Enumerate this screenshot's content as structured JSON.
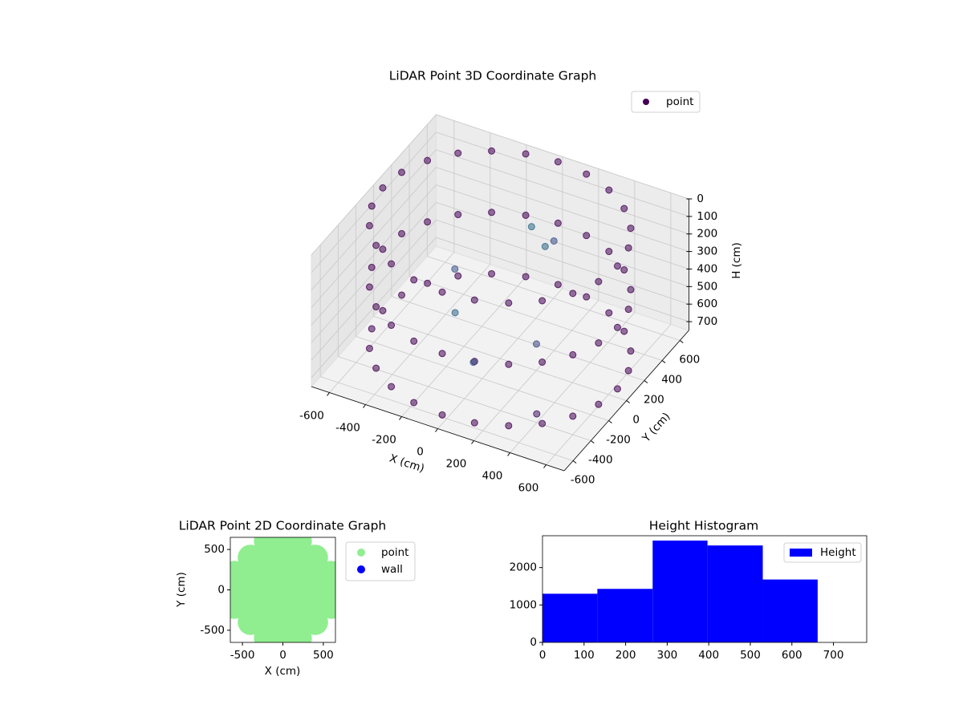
{
  "chart_data": [
    {
      "type": "scatter3d",
      "title": "LiDAR Point 3D Coordinate Graph",
      "xlabel": "X (cm)",
      "ylabel": "Y (cm)",
      "zlabel": "H (cm)",
      "xlim": [
        -700,
        700
      ],
      "ylim": [
        -700,
        700
      ],
      "zlim": [
        750,
        0
      ],
      "xticks": [
        -600,
        -400,
        -200,
        0,
        200,
        400,
        600
      ],
      "yticks": [
        -600,
        -400,
        -200,
        0,
        200,
        400,
        600
      ],
      "zticks": [
        0,
        100,
        200,
        300,
        400,
        500,
        600,
        700
      ],
      "grid": true,
      "cmap": "viridis",
      "legend": "upper right",
      "series": [
        {
          "name": "point",
          "color": "#440154",
          "x": [
            650,
            628,
            563,
            460,
            325,
            168,
            0,
            -168,
            -325,
            -460,
            -563,
            -628,
            -650,
            -628,
            -563,
            -460,
            -325,
            -168,
            0,
            168,
            325,
            460,
            563,
            628,
            650,
            628,
            563,
            460,
            325,
            168,
            0,
            -168,
            -325,
            -460,
            -563,
            -628,
            -650,
            -628,
            -563,
            -460,
            -325,
            -168,
            0,
            168,
            325,
            460,
            563,
            628,
            650,
            628,
            563,
            460,
            325,
            168,
            0,
            -168,
            -325,
            -460,
            -563,
            -628,
            -650,
            -628,
            -563,
            -460,
            -325,
            -168,
            0,
            168,
            325,
            460,
            563,
            628,
            100,
            200,
            -200,
            0,
            300,
            -300,
            150,
            400
          ],
          "y": [
            0,
            168,
            325,
            460,
            563,
            628,
            650,
            628,
            563,
            460,
            325,
            168,
            0,
            -168,
            -325,
            -460,
            -563,
            -628,
            -650,
            -628,
            -563,
            -460,
            -325,
            -168,
            0,
            168,
            325,
            460,
            563,
            628,
            650,
            628,
            563,
            460,
            325,
            168,
            0,
            -168,
            -325,
            -460,
            -563,
            -628,
            -650,
            -628,
            -563,
            -460,
            -325,
            -168,
            0,
            168,
            325,
            460,
            563,
            628,
            650,
            628,
            563,
            460,
            325,
            168,
            0,
            -168,
            -325,
            -460,
            -563,
            -628,
            -650,
            -628,
            -563,
            -460,
            -325,
            -168,
            150,
            100,
            -100,
            -300,
            -200,
            100,
            300,
            -400
          ],
          "z": [
            0,
            0,
            0,
            0,
            0,
            0,
            0,
            0,
            0,
            0,
            0,
            0,
            0,
            0,
            0,
            0,
            0,
            0,
            0,
            0,
            0,
            0,
            0,
            0,
            350,
            350,
            350,
            350,
            350,
            350,
            350,
            350,
            350,
            350,
            350,
            350,
            350,
            350,
            350,
            350,
            350,
            350,
            350,
            350,
            350,
            350,
            350,
            350,
            700,
            700,
            700,
            700,
            700,
            700,
            700,
            700,
            700,
            700,
            700,
            700,
            700,
            700,
            700,
            700,
            700,
            700,
            700,
            700,
            700,
            700,
            700,
            700,
            50,
            100,
            500,
            600,
            450,
            400,
            200,
            700
          ]
        }
      ]
    },
    {
      "type": "scatter",
      "title": "LiDAR Point 2D Coordinate Graph",
      "xlabel": "X (cm)",
      "ylabel": "Y (cm)",
      "xlim": [
        -650,
        650
      ],
      "ylim": [
        -650,
        650
      ],
      "xticks": [
        -500,
        0,
        500
      ],
      "yticks": [
        -500,
        0,
        500
      ],
      "legend": "outside",
      "series": [
        {
          "name": "point",
          "color": "#90ee90",
          "x": [
            -600,
            -600,
            -600,
            -400,
            -400,
            -400,
            -400,
            -400,
            -200,
            -200,
            -200,
            -200,
            -200,
            -200,
            -200,
            0,
            0,
            0,
            0,
            0,
            0,
            0,
            200,
            200,
            200,
            200,
            200,
            200,
            200,
            400,
            400,
            400,
            400,
            400,
            600,
            600,
            600
          ],
          "y": [
            -200,
            0,
            200,
            -400,
            -200,
            0,
            200,
            400,
            -600,
            -400,
            -200,
            0,
            200,
            400,
            600,
            -600,
            -400,
            -200,
            0,
            200,
            400,
            600,
            -600,
            -400,
            -200,
            0,
            200,
            400,
            600,
            -400,
            -200,
            0,
            200,
            400,
            -200,
            0,
            200
          ]
        },
        {
          "name": "wall",
          "color": "#0000ff",
          "x": [],
          "y": []
        }
      ]
    },
    {
      "type": "histogram",
      "title": "Height Histogram",
      "name": "Height",
      "color": "#0000ff",
      "bins": [
        0,
        132,
        265,
        397,
        530,
        662
      ],
      "counts": [
        1300,
        1430,
        2720,
        2590,
        1680
      ],
      "xlim": [
        0,
        780
      ],
      "ylim": [
        0,
        2850
      ],
      "xticks": [
        0,
        100,
        200,
        300,
        400,
        500,
        600,
        700
      ],
      "yticks": [
        0,
        1000,
        2000
      ],
      "legend": "upper right"
    }
  ]
}
